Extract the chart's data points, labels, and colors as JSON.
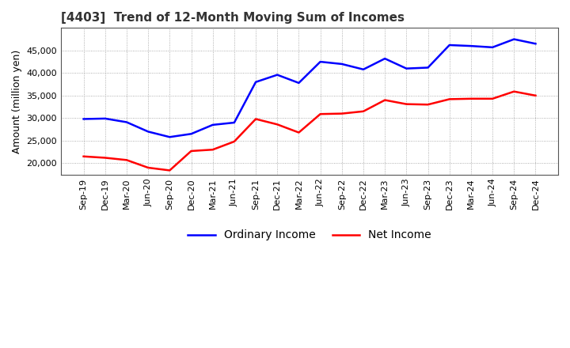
{
  "title": "[4403]  Trend of 12-Month Moving Sum of Incomes",
  "ylabel": "Amount (million yen)",
  "x_labels": [
    "Sep-19",
    "Dec-19",
    "Mar-20",
    "Jun-20",
    "Sep-20",
    "Dec-20",
    "Mar-21",
    "Jun-21",
    "Sep-21",
    "Dec-21",
    "Mar-22",
    "Jun-22",
    "Sep-22",
    "Dec-22",
    "Mar-23",
    "Jun-23",
    "Sep-23",
    "Dec-23",
    "Mar-24",
    "Jun-24",
    "Sep-24",
    "Dec-24"
  ],
  "ordinary_income": [
    29800,
    29900,
    29100,
    27000,
    25800,
    26500,
    28500,
    29000,
    38000,
    39600,
    37800,
    42500,
    42000,
    40800,
    43200,
    41000,
    41200,
    46200,
    46000,
    45700,
    47500,
    46500
  ],
  "net_income": [
    21500,
    21200,
    20700,
    19000,
    18400,
    22700,
    23000,
    24800,
    29800,
    28600,
    26800,
    30900,
    31000,
    31500,
    34000,
    33100,
    33000,
    34200,
    34300,
    34300,
    35900,
    35000
  ],
  "ordinary_color": "#0000FF",
  "net_color": "#FF0000",
  "ylim": [
    17500,
    50000
  ],
  "yticks": [
    20000,
    25000,
    30000,
    35000,
    40000,
    45000
  ],
  "background_color": "#FFFFFF",
  "grid_color": "#999999",
  "title_fontsize": 11,
  "title_color": "#333333",
  "label_fontsize": 9,
  "tick_fontsize": 8,
  "legend_labels": [
    "Ordinary Income",
    "Net Income"
  ],
  "line_width": 1.8
}
